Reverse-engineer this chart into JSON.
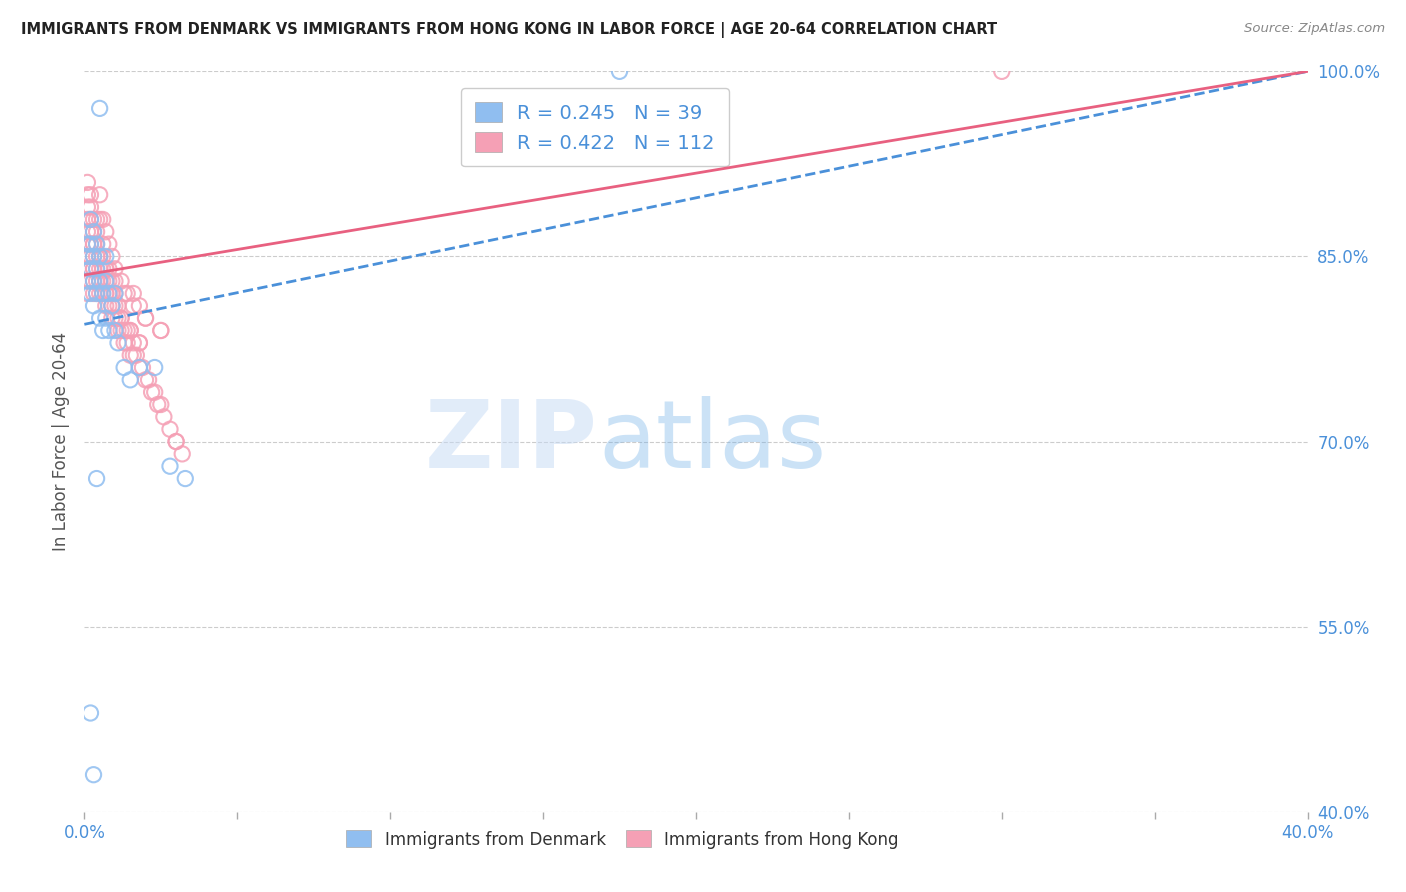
{
  "title": "IMMIGRANTS FROM DENMARK VS IMMIGRANTS FROM HONG KONG IN LABOR FORCE | AGE 20-64 CORRELATION CHART",
  "source": "Source: ZipAtlas.com",
  "ylabel": "In Labor Force | Age 20-64",
  "xlim": [
    0.0,
    0.4
  ],
  "ylim": [
    0.4,
    1.0
  ],
  "xticks": [
    0.0,
    0.05,
    0.1,
    0.15,
    0.2,
    0.25,
    0.3,
    0.35,
    0.4
  ],
  "yticks": [
    0.4,
    0.55,
    0.7,
    0.85,
    1.0
  ],
  "ytick_labels": [
    "40.0%",
    "55.0%",
    "70.0%",
    "85.0%",
    "100.0%"
  ],
  "xtick_labels": [
    "0.0%",
    "",
    "",
    "",
    "",
    "",
    "",
    "",
    "40.0%"
  ],
  "denmark_color": "#90bef0",
  "hong_kong_color": "#f5a0b5",
  "trend_denmark_color": "#4a90d9",
  "trend_hk_color": "#e86080",
  "R_denmark": 0.245,
  "N_denmark": 39,
  "R_hk": 0.422,
  "N_hk": 112,
  "watermark_zip": "ZIP",
  "watermark_atlas": "atlas",
  "background_color": "#ffffff",
  "grid_color": "#cccccc",
  "dk_trend_x0": 0.0,
  "dk_trend_y0": 0.795,
  "dk_trend_x1": 0.4,
  "dk_trend_y1": 1.0,
  "hk_trend_x0": 0.0,
  "hk_trend_y0": 0.835,
  "hk_trend_x1": 0.4,
  "hk_trend_y1": 1.0,
  "denmark_x": [
    0.001,
    0.001,
    0.001,
    0.002,
    0.002,
    0.002,
    0.002,
    0.003,
    0.003,
    0.003,
    0.003,
    0.004,
    0.004,
    0.004,
    0.005,
    0.005,
    0.005,
    0.006,
    0.006,
    0.007,
    0.007,
    0.007,
    0.008,
    0.008,
    0.009,
    0.01,
    0.01,
    0.011,
    0.013,
    0.015,
    0.018,
    0.023,
    0.028,
    0.033,
    0.175,
    0.002,
    0.003,
    0.004,
    0.005
  ],
  "denmark_y": [
    0.83,
    0.85,
    0.86,
    0.82,
    0.84,
    0.86,
    0.88,
    0.81,
    0.83,
    0.85,
    0.87,
    0.82,
    0.84,
    0.86,
    0.8,
    0.83,
    0.85,
    0.79,
    0.82,
    0.8,
    0.83,
    0.85,
    0.79,
    0.82,
    0.81,
    0.79,
    0.82,
    0.78,
    0.76,
    0.75,
    0.76,
    0.76,
    0.68,
    0.67,
    1.0,
    0.48,
    0.43,
    0.67,
    0.97
  ],
  "hk_x": [
    0.001,
    0.001,
    0.001,
    0.001,
    0.001,
    0.001,
    0.001,
    0.001,
    0.001,
    0.002,
    0.002,
    0.002,
    0.002,
    0.002,
    0.002,
    0.002,
    0.003,
    0.003,
    0.003,
    0.003,
    0.003,
    0.003,
    0.004,
    0.004,
    0.004,
    0.004,
    0.004,
    0.004,
    0.005,
    0.005,
    0.005,
    0.005,
    0.005,
    0.006,
    0.006,
    0.006,
    0.006,
    0.006,
    0.007,
    0.007,
    0.007,
    0.007,
    0.008,
    0.008,
    0.008,
    0.008,
    0.009,
    0.009,
    0.009,
    0.009,
    0.01,
    0.01,
    0.01,
    0.011,
    0.011,
    0.011,
    0.012,
    0.012,
    0.013,
    0.013,
    0.014,
    0.014,
    0.015,
    0.015,
    0.016,
    0.016,
    0.017,
    0.018,
    0.018,
    0.019,
    0.02,
    0.021,
    0.022,
    0.023,
    0.024,
    0.025,
    0.026,
    0.028,
    0.03,
    0.032,
    0.002,
    0.003,
    0.004,
    0.005,
    0.006,
    0.007,
    0.008,
    0.009,
    0.01,
    0.012,
    0.014,
    0.016,
    0.018,
    0.02,
    0.025,
    0.003,
    0.005,
    0.007,
    0.01,
    0.013,
    0.016,
    0.02,
    0.025,
    0.03,
    0.3,
    0.003,
    0.005,
    0.007,
    0.009,
    0.012,
    0.015,
    0.018
  ],
  "hk_y": [
    0.84,
    0.85,
    0.86,
    0.87,
    0.88,
    0.89,
    0.9,
    0.91,
    0.82,
    0.83,
    0.84,
    0.85,
    0.86,
    0.87,
    0.88,
    0.89,
    0.82,
    0.83,
    0.84,
    0.85,
    0.86,
    0.87,
    0.82,
    0.83,
    0.84,
    0.85,
    0.86,
    0.87,
    0.82,
    0.83,
    0.84,
    0.85,
    0.88,
    0.82,
    0.83,
    0.84,
    0.85,
    0.86,
    0.81,
    0.82,
    0.83,
    0.84,
    0.81,
    0.82,
    0.83,
    0.84,
    0.8,
    0.81,
    0.82,
    0.83,
    0.8,
    0.81,
    0.82,
    0.79,
    0.8,
    0.81,
    0.79,
    0.8,
    0.78,
    0.79,
    0.78,
    0.79,
    0.77,
    0.79,
    0.77,
    0.78,
    0.77,
    0.76,
    0.78,
    0.76,
    0.75,
    0.75,
    0.74,
    0.74,
    0.73,
    0.73,
    0.72,
    0.71,
    0.7,
    0.69,
    0.9,
    0.88,
    0.88,
    0.9,
    0.88,
    0.87,
    0.86,
    0.85,
    0.84,
    0.83,
    0.82,
    0.82,
    0.81,
    0.8,
    0.79,
    0.86,
    0.85,
    0.84,
    0.83,
    0.82,
    0.81,
    0.8,
    0.79,
    0.7,
    1.0,
    0.84,
    0.83,
    0.82,
    0.81,
    0.8,
    0.79,
    0.78
  ]
}
